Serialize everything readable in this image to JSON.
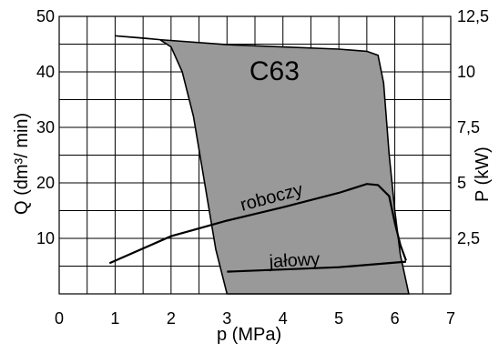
{
  "chart_data": {
    "type": "line",
    "title": "C63",
    "xlabel": "p (MPa)",
    "ylabel_left": "Q (dm³/ min)",
    "ylabel_right": "P (kW)",
    "xlim": [
      0,
      7
    ],
    "ylim_left": [
      0,
      50
    ],
    "ylim_right": [
      0,
      12.5
    ],
    "grid": true,
    "x_ticks": [
      "0",
      "1",
      "2",
      "3",
      "4",
      "5",
      "6",
      "7"
    ],
    "y_ticks_left": [
      "10",
      "20",
      "30",
      "40",
      "50"
    ],
    "y_ticks_right": [
      "2,5",
      "5",
      "7,5",
      "10",
      "12,5"
    ],
    "colors": {
      "band_fill": "#999999",
      "grid": "#000000",
      "line": "#000000"
    },
    "series": [
      {
        "name": "",
        "kind": "band_outline_upper",
        "x": [
          1.0,
          1.5,
          1.8,
          2.0,
          2.2,
          2.4,
          2.6,
          2.8,
          3.0
        ],
        "y": [
          46.5,
          46.1,
          45.8,
          44.5,
          40.0,
          32.0,
          20.0,
          8.0,
          0.0
        ]
      },
      {
        "name": "",
        "kind": "band_outline_lower",
        "x": [
          3.0,
          5.5,
          5.8,
          6.0,
          6.2
        ],
        "y": [
          0.0,
          0.0,
          0.0,
          0.0,
          0.0
        ]
      },
      {
        "name": "",
        "kind": "band_outline_right",
        "x": [
          1.8,
          3.0,
          4.0,
          5.0,
          5.5,
          5.7,
          5.8,
          5.9,
          6.0,
          6.1,
          6.25
        ],
        "y": [
          45.8,
          44.9,
          44.5,
          44.1,
          43.7,
          43.0,
          38.0,
          25.0,
          15.0,
          7.0,
          0.0
        ]
      },
      {
        "name": "roboczy",
        "axis": "right",
        "x": [
          0.9,
          2.0,
          3.0,
          4.0,
          5.0,
          5.5,
          5.7,
          5.9,
          6.0,
          6.1,
          6.2
        ],
        "y": [
          1.38,
          2.6,
          3.3,
          3.9,
          4.55,
          4.95,
          4.9,
          4.4,
          3.2,
          2.2,
          1.5
        ]
      },
      {
        "name": "jałowy",
        "axis": "right",
        "x": [
          3.0,
          4.0,
          5.0,
          6.2
        ],
        "y": [
          1.0,
          1.1,
          1.2,
          1.45
        ]
      }
    ],
    "annotations": [
      {
        "text": "C63",
        "x": 3.4,
        "y": 38.5
      },
      {
        "text": "roboczy",
        "x": 4.4,
        "y": 15.5
      },
      {
        "text": "jałowy",
        "x": 4.5,
        "y": 5.7
      }
    ]
  }
}
